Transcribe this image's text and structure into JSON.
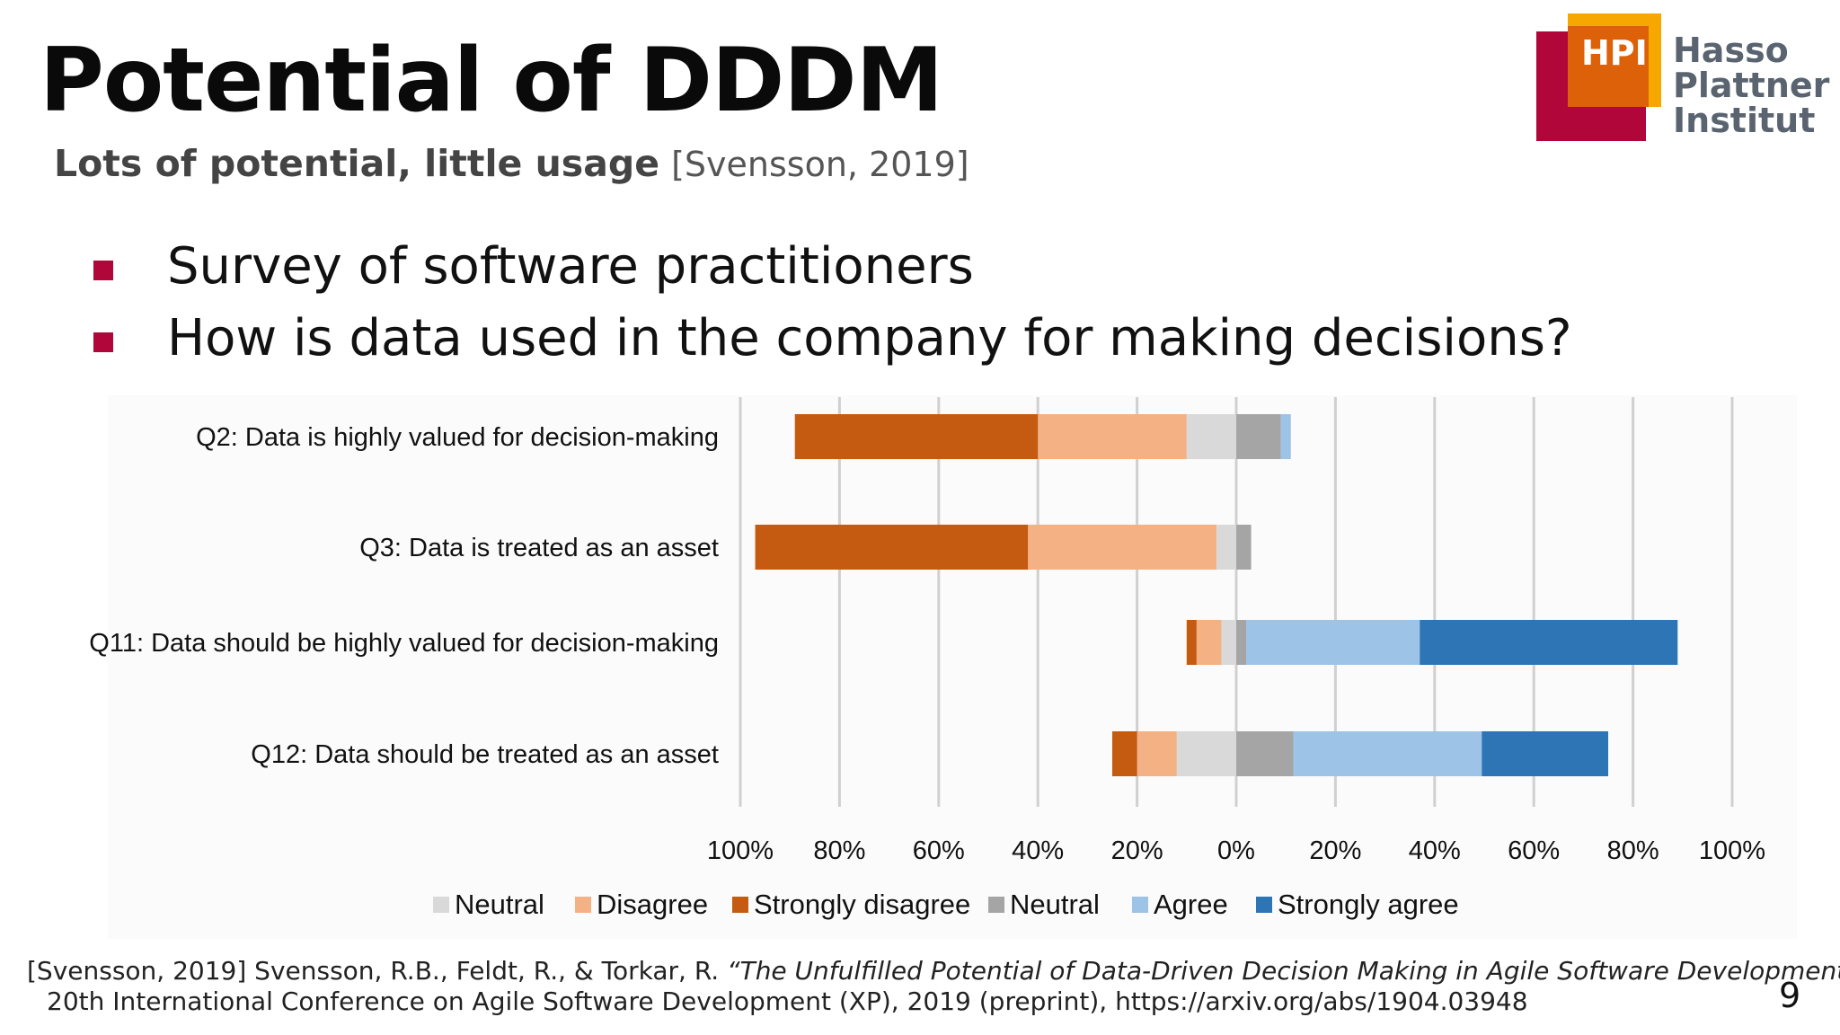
{
  "slide": {
    "title": "Potential of DDDM",
    "subtitle_bold": "Lots of potential, little usage",
    "subtitle_cite": "[Svensson, 2019]",
    "bullets": [
      "Survey of software practitioners",
      "How is data used in the company for making decisions?"
    ],
    "page_number": "9",
    "footnote": {
      "line1_prefix": "[Svensson, 2019] Svensson, R.B., Feldt, R., & Torkar, R. ",
      "line1_title": "“The Unfulfilled Potential of Data-Driven Decision Making in Agile Software Development”,",
      "line2": "20th International Conference on Agile Software Development (XP), 2019 (preprint), https://arxiv.org/abs/1904.03948"
    }
  },
  "logo": {
    "badge": "HPI",
    "lines": [
      "Hasso",
      "Plattner",
      "Institut"
    ],
    "colors": {
      "red": "#b1063a",
      "orange": "#dd6108",
      "yellow": "#f6a800",
      "text": "#5a6470"
    }
  },
  "chart_data": {
    "type": "bar",
    "subtype": "diverging-stacked-horizontal",
    "categories": [
      "Q2: Data is highly valued for decision-making",
      "Q3: Data is treated as an asset",
      "Q11: Data should be highly valued for decision-making",
      "Q12: Data should be treated as an asset"
    ],
    "series": [
      {
        "name": "Strongly disagree",
        "side": "negative",
        "color": "#c55a11",
        "values": [
          49,
          55,
          2,
          5
        ]
      },
      {
        "name": "Disagree",
        "side": "negative",
        "color": "#f4b183",
        "values": [
          30,
          38,
          5,
          8
        ]
      },
      {
        "name": "Neutral",
        "side": "negative",
        "color": "#d9d9d9",
        "values": [
          10,
          4,
          3,
          12
        ]
      },
      {
        "name": "Neutral",
        "side": "positive",
        "color": "#a5a5a5",
        "values": [
          9,
          3,
          2,
          11.5
        ]
      },
      {
        "name": "Agree",
        "side": "positive",
        "color": "#9dc3e6",
        "values": [
          2,
          0,
          35,
          38
        ]
      },
      {
        "name": "Strongly agree",
        "side": "positive",
        "color": "#2e75b6",
        "values": [
          0,
          0,
          52,
          25.5
        ]
      }
    ],
    "legend_order": [
      "Neutral",
      "Disagree",
      "Strongly disagree",
      "Neutral",
      "Agree",
      "Strongly agree"
    ],
    "legend_series_index": [
      2,
      1,
      0,
      3,
      4,
      5
    ],
    "xlim": [
      -100,
      100
    ],
    "ticks": [
      -100,
      -80,
      -60,
      -40,
      -20,
      0,
      20,
      40,
      60,
      80,
      100
    ],
    "tick_labels": [
      "100%",
      "80%",
      "60%",
      "40%",
      "20%",
      "0%",
      "20%",
      "40%",
      "60%",
      "80%",
      "100%"
    ],
    "grid": true,
    "legend_position": "bottom",
    "title": "",
    "xlabel": "",
    "ylabel": ""
  }
}
